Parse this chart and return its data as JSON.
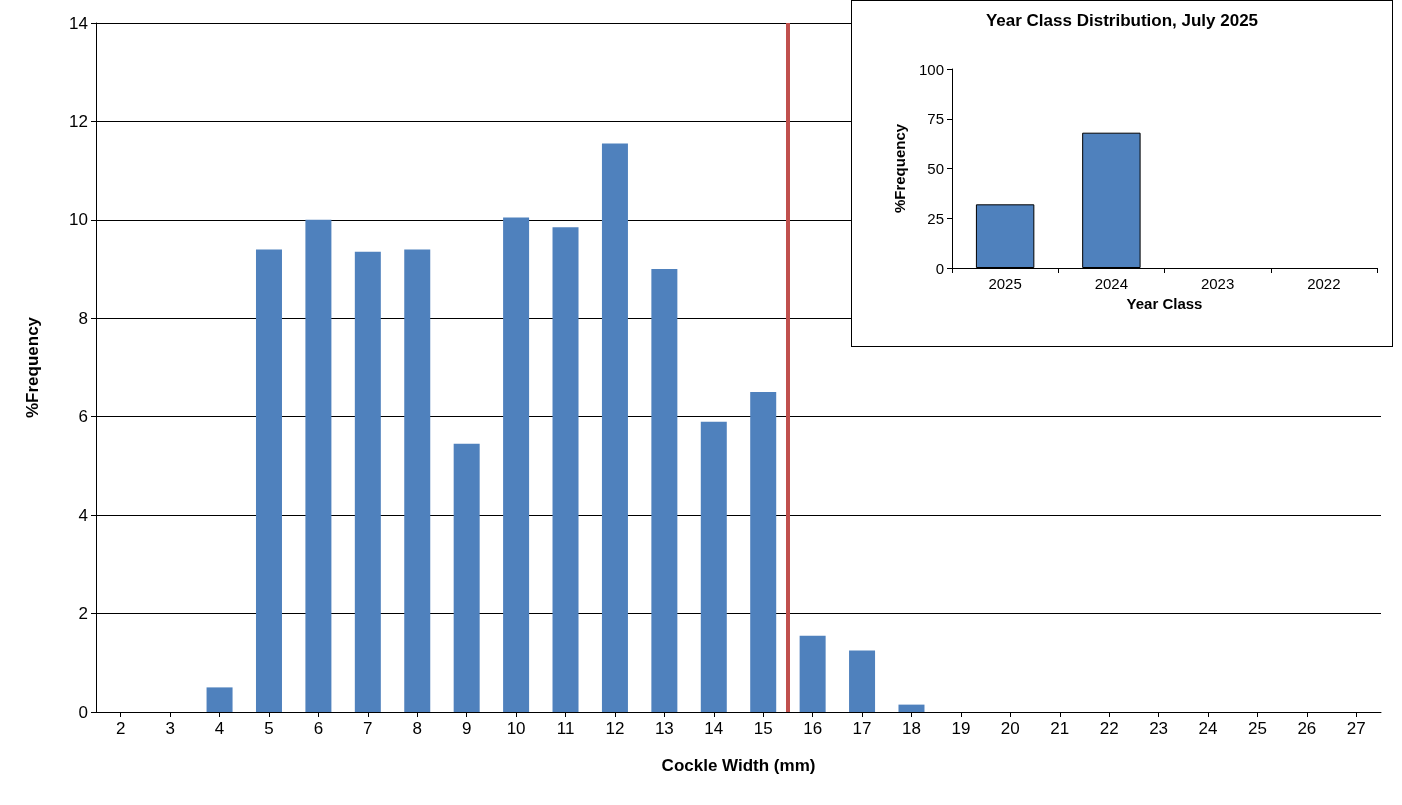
{
  "chart_data": [
    {
      "type": "bar",
      "xlabel": "Cockle Width (mm)",
      "ylabel": "%Frequency",
      "x": [
        2,
        3,
        4,
        5,
        6,
        7,
        8,
        9,
        10,
        11,
        12,
        13,
        14,
        15,
        16,
        17,
        18,
        19,
        20,
        21,
        22,
        23,
        24,
        25,
        26,
        27
      ],
      "values": [
        0,
        0,
        0.5,
        9.4,
        10.0,
        9.35,
        9.4,
        5.45,
        10.05,
        9.85,
        11.55,
        9.0,
        5.9,
        6.5,
        1.55,
        1.25,
        0.15,
        0,
        0,
        0,
        0,
        0,
        0,
        0,
        0,
        0
      ],
      "color": "#4f81bd",
      "xlim": [
        1.5,
        27.5
      ],
      "xticks": [
        2,
        3,
        4,
        5,
        6,
        7,
        8,
        9,
        10,
        11,
        12,
        13,
        14,
        15,
        16,
        17,
        18,
        19,
        20,
        21,
        22,
        23,
        24,
        25,
        26,
        27
      ],
      "ylim": [
        0,
        14
      ],
      "yticks": [
        0,
        2,
        4,
        6,
        8,
        10,
        12,
        14
      ],
      "grid": "y",
      "ref_lines": [
        {
          "axis": "x",
          "value": 15.5,
          "color": "#c0504d",
          "line_style": "solid"
        }
      ]
    },
    {
      "type": "bar",
      "title": "Year Class Distribution, July 2025",
      "xlabel": "Year Class",
      "ylabel": "%Frequency",
      "categories": [
        "2025",
        "2024",
        "2023",
        "2022"
      ],
      "values": [
        32,
        68,
        0,
        0
      ],
      "color": "#4f81bd",
      "ylim": [
        0,
        100
      ],
      "yticks": [
        0,
        25,
        50,
        75,
        100
      ],
      "grid": false
    }
  ]
}
